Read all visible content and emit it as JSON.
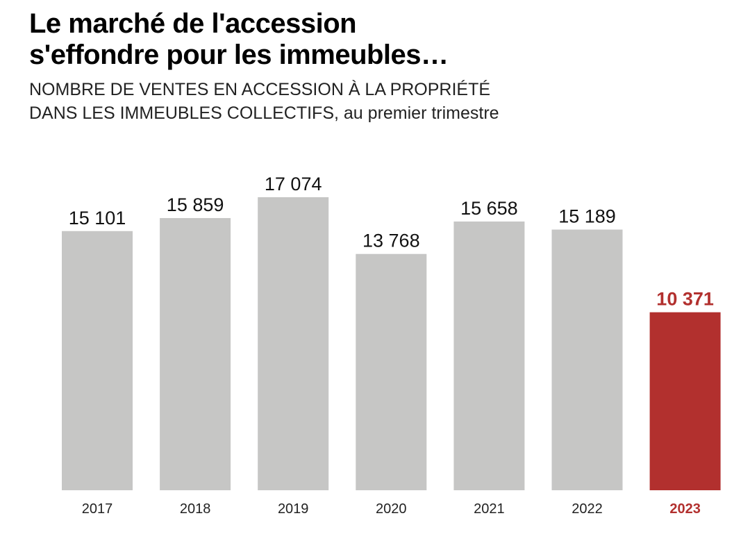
{
  "header": {
    "title_line1": "Le marché de l'accession",
    "title_line2": "s'effondre pour les immeubles…",
    "subtitle_line1": "NOMBRE DE VENTES EN ACCESSION À LA PROPRIÉTÉ",
    "subtitle_line2_caps": "DANS LES IMMEUBLES COLLECTIFS",
    "subtitle_line2_rest": ", au premier trimestre"
  },
  "colors": {
    "bar": "#c6c6c5",
    "highlight": "#b2302e",
    "text": "#111111"
  },
  "chart_data": {
    "type": "bar",
    "categories": [
      "2017",
      "2018",
      "2019",
      "2020",
      "2021",
      "2022",
      "2023"
    ],
    "values": [
      15101,
      15859,
      17074,
      13768,
      15658,
      15189,
      10371
    ],
    "value_labels": [
      "15 101",
      "15 859",
      "17 074",
      "13 768",
      "15 658",
      "15 189",
      "10 371"
    ],
    "highlight_index": 6,
    "ylim": [
      0,
      17074
    ],
    "grid": false,
    "legend": "none"
  }
}
